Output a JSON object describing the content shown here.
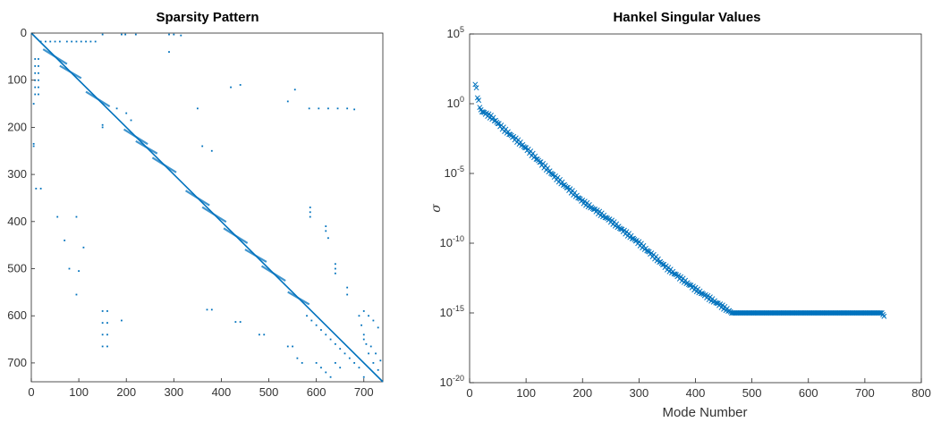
{
  "colors": {
    "accent": "#0072BD",
    "axis": "#262626",
    "text": "#333333"
  },
  "chart_data": [
    {
      "type": "scatter",
      "subtype": "sparsity",
      "title": "Sparsity Pattern",
      "xlabel": "",
      "ylabel": "",
      "xlim": [
        0,
        740
      ],
      "ylim": [
        740,
        0
      ],
      "xticks": [
        0,
        100,
        200,
        300,
        400,
        500,
        600,
        700
      ],
      "yticks": [
        0,
        100,
        200,
        300,
        400,
        500,
        600,
        700
      ],
      "grid": false,
      "diagonal": [
        [
          0,
          0
        ],
        [
          740,
          740
        ]
      ],
      "blocks": [
        [
          40,
          60
        ],
        [
          75,
          90
        ],
        [
          130,
          150
        ],
        [
          210,
          230
        ],
        [
          235,
          250
        ],
        [
          270,
          290
        ],
        [
          340,
          360
        ],
        [
          375,
          395
        ],
        [
          420,
          440
        ],
        [
          465,
          480
        ],
        [
          500,
          520
        ],
        [
          555,
          570
        ]
      ],
      "points": [
        [
          20,
          18
        ],
        [
          30,
          18
        ],
        [
          40,
          18
        ],
        [
          50,
          18
        ],
        [
          60,
          18
        ],
        [
          75,
          18
        ],
        [
          85,
          18
        ],
        [
          95,
          18
        ],
        [
          105,
          18
        ],
        [
          115,
          18
        ],
        [
          125,
          18
        ],
        [
          135,
          18
        ],
        [
          150,
          3
        ],
        [
          190,
          3
        ],
        [
          198,
          3
        ],
        [
          220,
          3
        ],
        [
          290,
          3
        ],
        [
          300,
          3
        ],
        [
          315,
          5
        ],
        [
          8,
          55
        ],
        [
          8,
          70
        ],
        [
          8,
          85
        ],
        [
          8,
          100
        ],
        [
          8,
          115
        ],
        [
          8,
          130
        ],
        [
          15,
          55
        ],
        [
          15,
          70
        ],
        [
          15,
          85
        ],
        [
          15,
          100
        ],
        [
          15,
          115
        ],
        [
          15,
          130
        ],
        [
          5,
          150
        ],
        [
          5,
          235
        ],
        [
          5,
          240
        ],
        [
          290,
          40
        ],
        [
          200,
          170
        ],
        [
          210,
          185
        ],
        [
          180,
          160
        ],
        [
          150,
          195
        ],
        [
          150,
          200
        ],
        [
          585,
          160
        ],
        [
          605,
          160
        ],
        [
          625,
          160
        ],
        [
          645,
          160
        ],
        [
          665,
          160
        ],
        [
          680,
          162
        ],
        [
          540,
          145
        ],
        [
          555,
          120
        ],
        [
          440,
          110
        ],
        [
          420,
          115
        ],
        [
          350,
          160
        ],
        [
          360,
          240
        ],
        [
          380,
          250
        ],
        [
          10,
          330
        ],
        [
          20,
          330
        ],
        [
          55,
          390
        ],
        [
          95,
          390
        ],
        [
          70,
          440
        ],
        [
          110,
          455
        ],
        [
          80,
          500
        ],
        [
          100,
          505
        ],
        [
          95,
          555
        ],
        [
          190,
          610
        ],
        [
          150,
          590
        ],
        [
          150,
          615
        ],
        [
          150,
          640
        ],
        [
          150,
          665
        ],
        [
          160,
          590
        ],
        [
          160,
          615
        ],
        [
          160,
          640
        ],
        [
          160,
          665
        ],
        [
          370,
          587
        ],
        [
          380,
          587
        ],
        [
          430,
          613
        ],
        [
          440,
          613
        ],
        [
          480,
          640
        ],
        [
          490,
          640
        ],
        [
          540,
          665
        ],
        [
          550,
          665
        ],
        [
          587,
          370
        ],
        [
          587,
          380
        ],
        [
          587,
          390
        ],
        [
          620,
          410
        ],
        [
          620,
          420
        ],
        [
          625,
          435
        ],
        [
          640,
          490
        ],
        [
          640,
          500
        ],
        [
          640,
          510
        ],
        [
          665,
          540
        ],
        [
          665,
          555
        ],
        [
          580,
          600
        ],
        [
          590,
          610
        ],
        [
          600,
          620
        ],
        [
          610,
          630
        ],
        [
          620,
          640
        ],
        [
          630,
          650
        ],
        [
          640,
          660
        ],
        [
          650,
          670
        ],
        [
          660,
          680
        ],
        [
          670,
          690
        ],
        [
          680,
          700
        ],
        [
          690,
          710
        ],
        [
          700,
          590
        ],
        [
          710,
          600
        ],
        [
          720,
          610
        ],
        [
          730,
          625
        ],
        [
          700,
          650
        ],
        [
          715,
          665
        ],
        [
          725,
          680
        ],
        [
          735,
          695
        ],
        [
          600,
          700
        ],
        [
          610,
          710
        ],
        [
          620,
          720
        ],
        [
          630,
          730
        ],
        [
          640,
          700
        ],
        [
          650,
          710
        ],
        [
          560,
          690
        ],
        [
          570,
          700
        ],
        [
          690,
          600
        ],
        [
          695,
          620
        ],
        [
          700,
          640
        ],
        [
          705,
          660
        ],
        [
          710,
          680
        ],
        [
          720,
          700
        ],
        [
          730,
          715
        ],
        [
          700,
          730
        ]
      ]
    },
    {
      "type": "scatter",
      "title": "Hankel Singular Values",
      "xlabel": "Mode Number",
      "ylabel": "σ",
      "yscale": "log",
      "xlim": [
        0,
        800
      ],
      "ylim_exp": [
        -20,
        5
      ],
      "xticks": [
        0,
        100,
        200,
        300,
        400,
        500,
        600,
        700,
        800
      ],
      "yticks": [
        {
          "base": "10",
          "exp": "5",
          "value": 5
        },
        {
          "base": "10",
          "exp": "0",
          "value": 0
        },
        {
          "base": "10",
          "exp": "-5",
          "value": -5
        },
        {
          "base": "10",
          "exp": "-10",
          "value": -10
        },
        {
          "base": "10",
          "exp": "-15",
          "value": -15
        },
        {
          "base": "10",
          "exp": "-20",
          "value": -20
        }
      ],
      "grid": false,
      "marker": "x",
      "trend_log10": [
        [
          10,
          1.5
        ],
        [
          15,
          0.3
        ],
        [
          20,
          -0.5
        ],
        [
          40,
          -1.0
        ],
        [
          60,
          -1.8
        ],
        [
          100,
          -3.2
        ],
        [
          150,
          -5.2
        ],
        [
          200,
          -7.0
        ],
        [
          250,
          -8.4
        ],
        [
          300,
          -10.0
        ],
        [
          350,
          -11.8
        ],
        [
          400,
          -13.3
        ],
        [
          465,
          -15.0
        ],
        [
          730,
          -15.0
        ],
        [
          735,
          -15.3
        ]
      ]
    }
  ]
}
